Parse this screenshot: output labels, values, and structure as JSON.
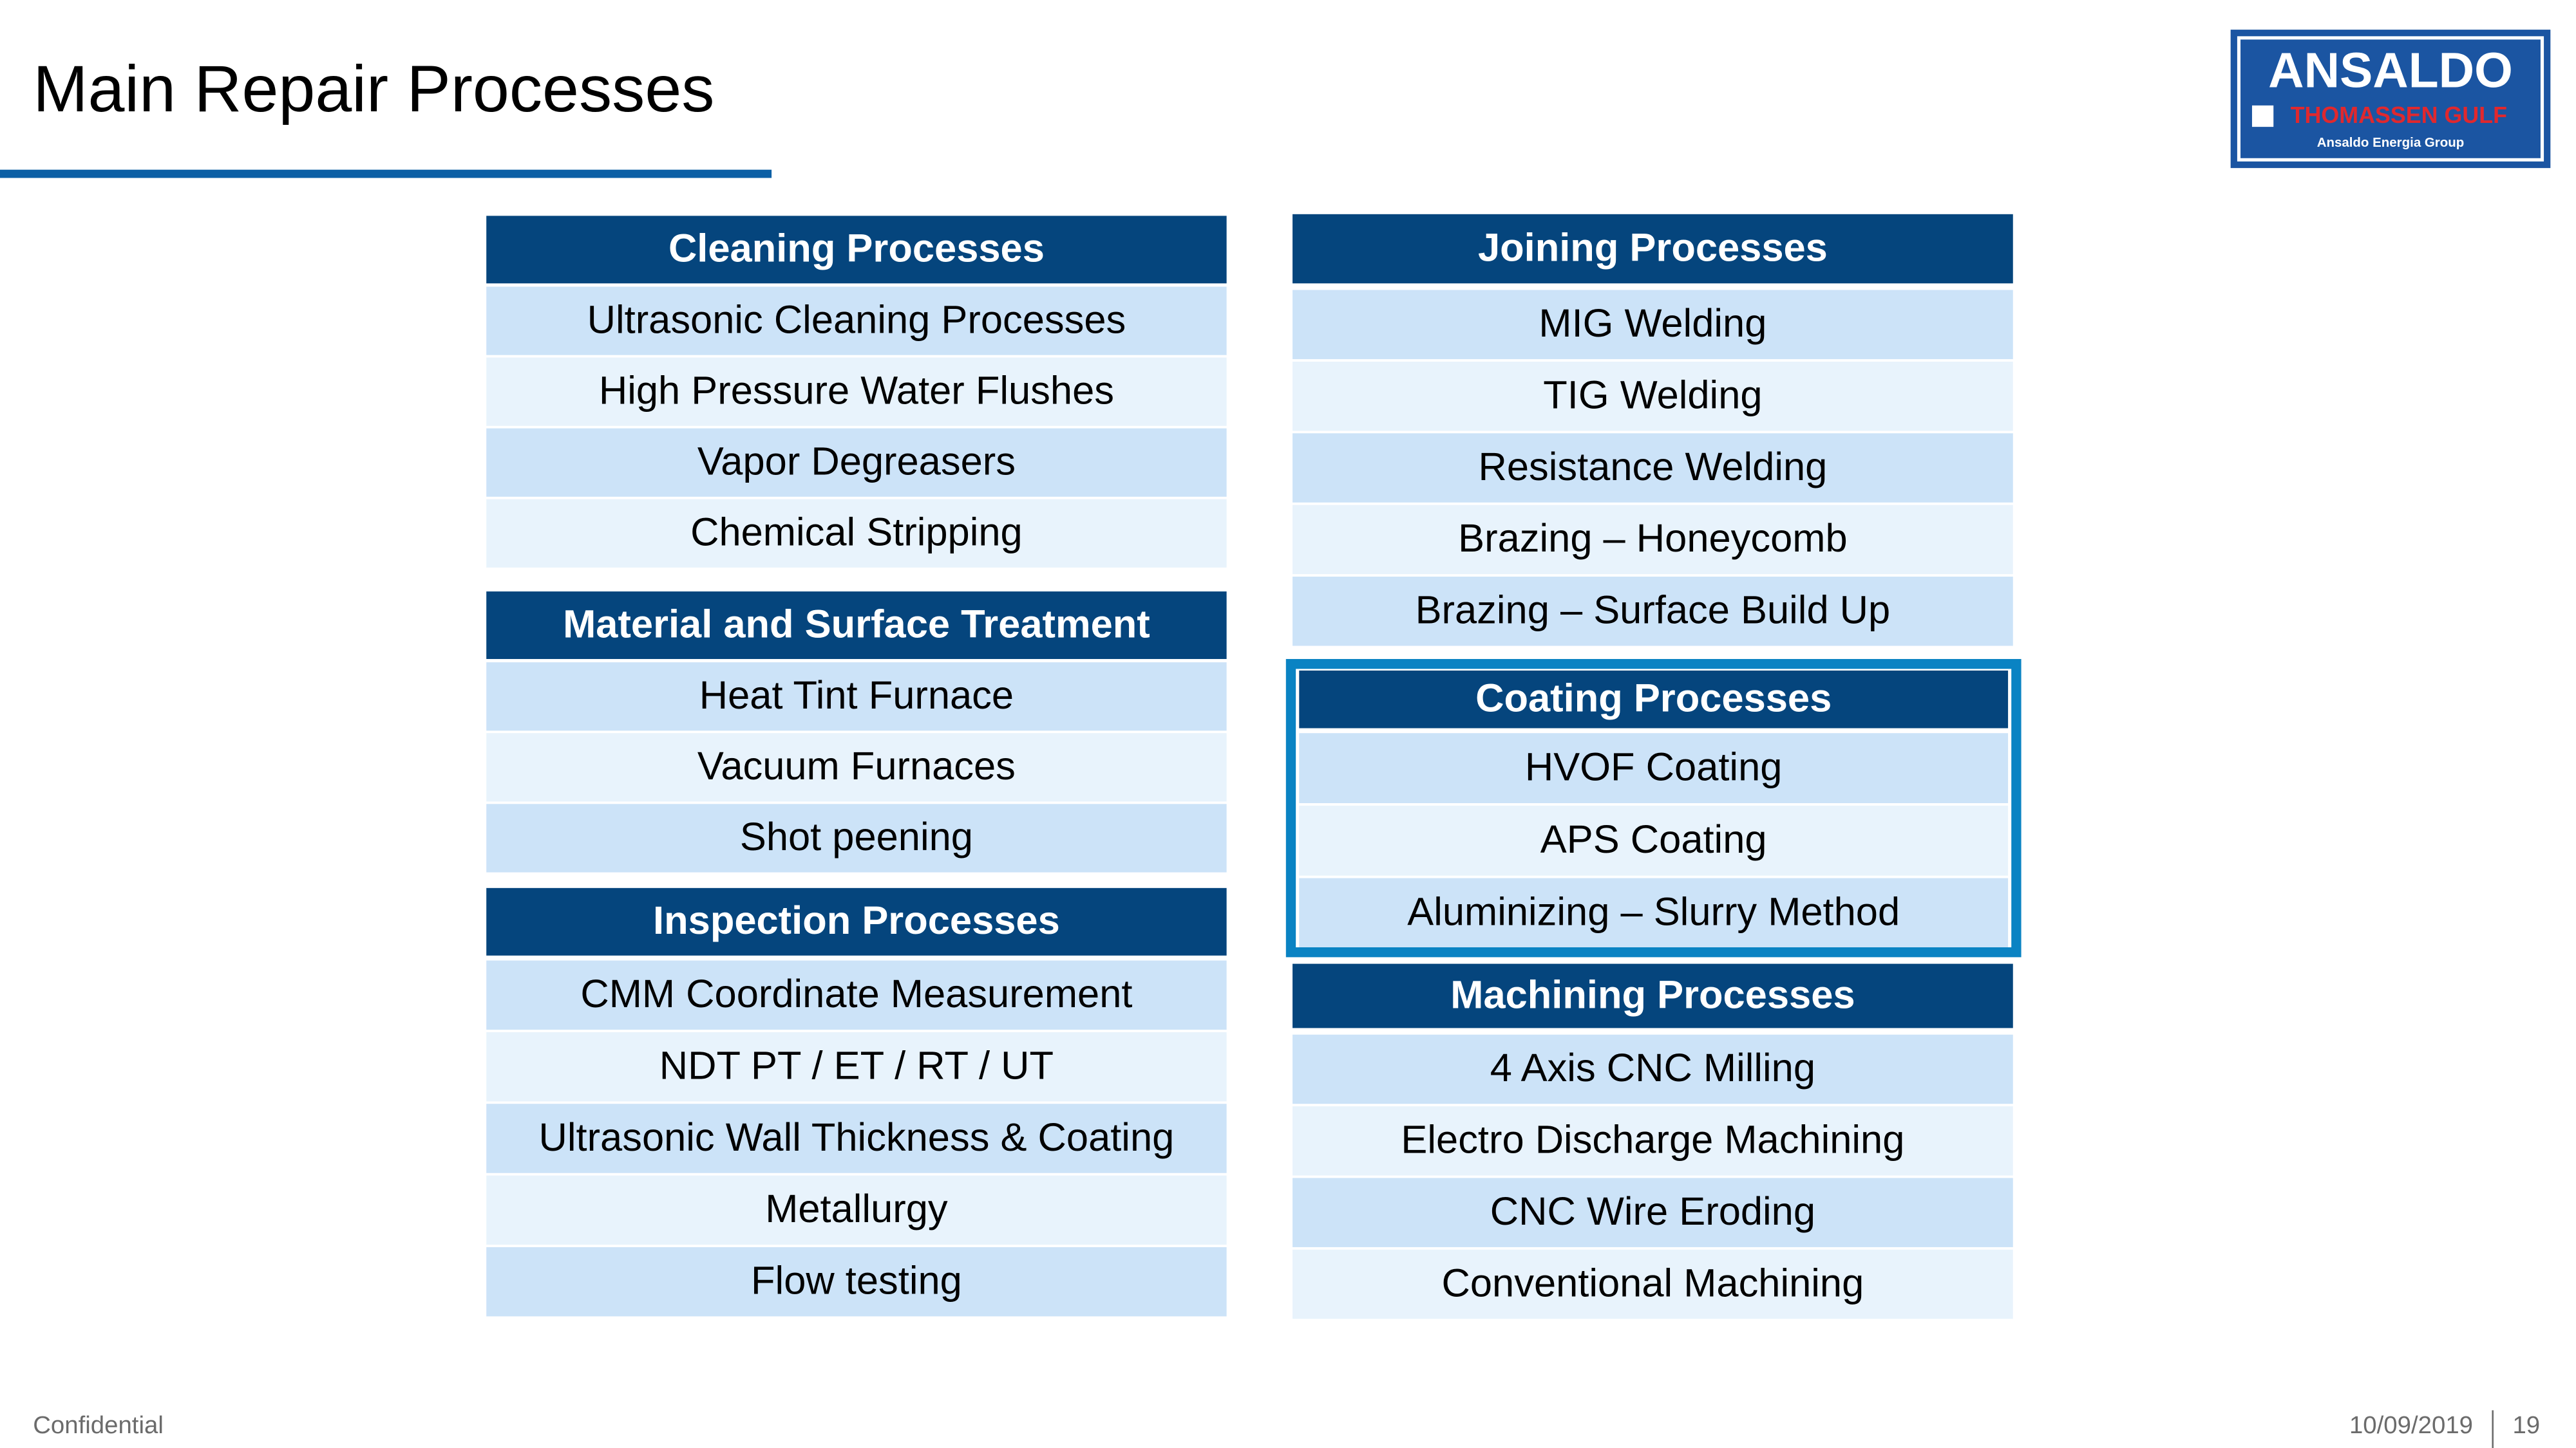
{
  "header": {
    "title": "Main Repair Processes"
  },
  "logo": {
    "brand": "ANSALDO",
    "subbrand": "THOMASSEN GULF",
    "group": "Ansaldo Energia Group"
  },
  "tables": [
    {
      "title": "Cleaning Processes",
      "rows": [
        "Ultrasonic Cleaning Processes",
        "High Pressure Water Flushes",
        "Vapor Degreasers",
        "Chemical Stripping"
      ]
    },
    {
      "title": "Material and Surface Treatment",
      "rows": [
        "Heat Tint Furnace",
        "Vacuum Furnaces",
        "Shot peening"
      ]
    },
    {
      "title": "Inspection Processes",
      "rows": [
        "CMM Coordinate Measurement",
        "NDT PT / ET / RT / UT",
        "Ultrasonic Wall Thickness & Coating",
        "Metallurgy",
        "Flow testing"
      ]
    },
    {
      "title": "Joining Processes",
      "rows": [
        "MIG Welding",
        "TIG Welding",
        "Resistance Welding",
        "Brazing – Honeycomb",
        "Brazing – Surface Build Up"
      ]
    },
    {
      "title": "Coating Processes",
      "rows": [
        "HVOF Coating",
        "APS Coating",
        "Aluminizing – Slurry Method"
      ]
    },
    {
      "title": "Machining Processes",
      "rows": [
        "4 Axis CNC Milling",
        "Electro Discharge Machining",
        "CNC Wire Eroding",
        "Conventional Machining"
      ]
    }
  ],
  "footer": {
    "confidential": "Confidential",
    "date": "10/09/2019",
    "page": "19"
  }
}
